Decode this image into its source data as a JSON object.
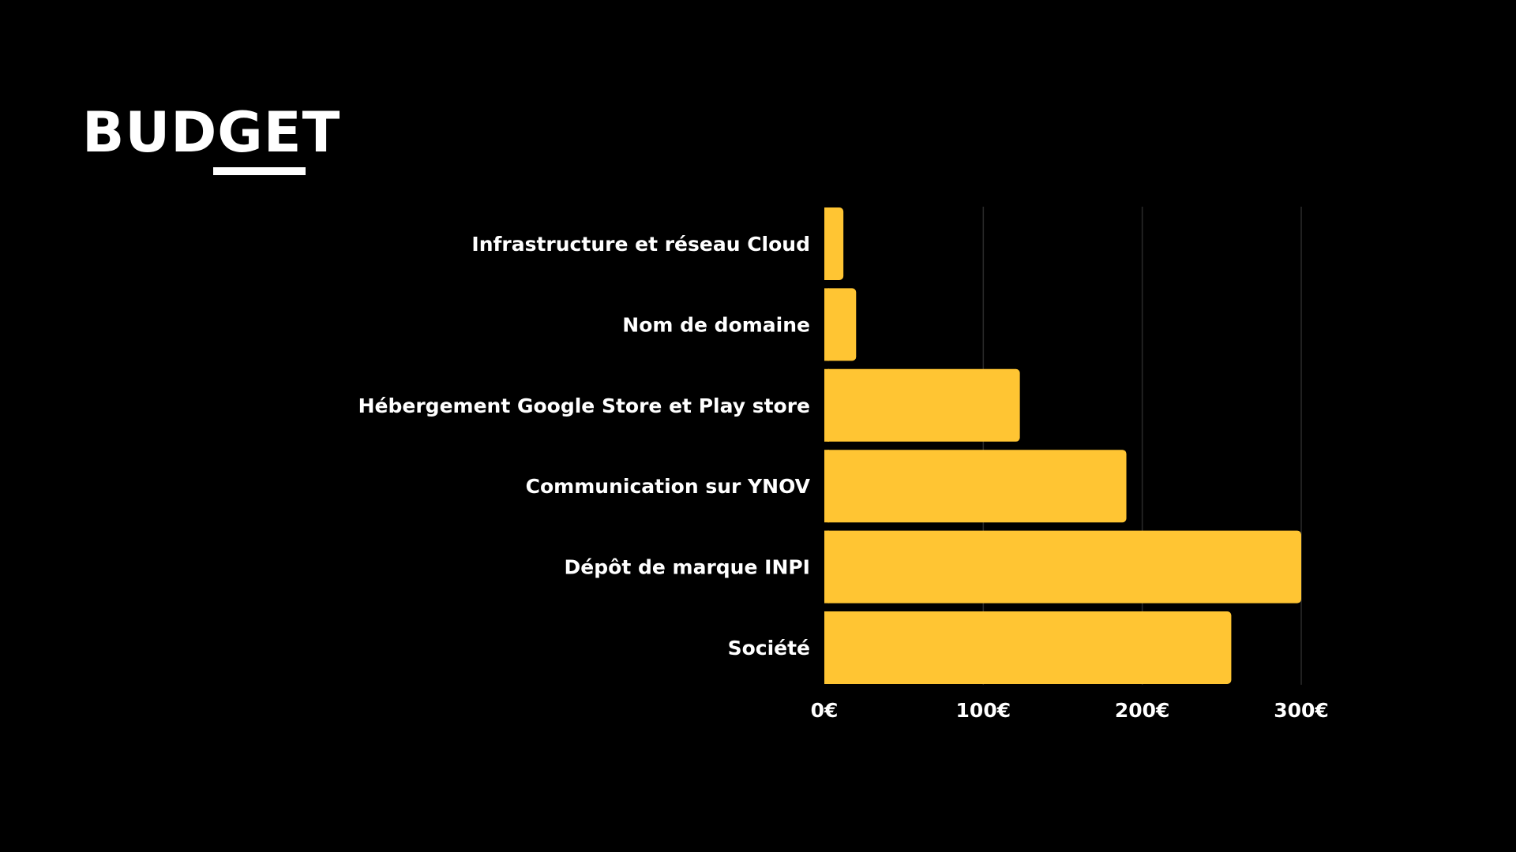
{
  "slide": {
    "title": "BUDGET"
  },
  "colors": {
    "background": "#000000",
    "bar": "#FFC533",
    "text": "#FFFFFF",
    "grid": "#2A2A2A"
  },
  "chart_data": {
    "type": "bar",
    "orientation": "horizontal",
    "categories": [
      "Infrastructure et réseau Cloud",
      "Nom de domaine",
      "Hébergement Google Store et Play store",
      "Communication sur YNOV",
      "Dépôt de marque INPI",
      "Société"
    ],
    "values": [
      12,
      20,
      123,
      190,
      300,
      256
    ],
    "unit": "€",
    "xlim": [
      0,
      300
    ],
    "xticks": [
      0,
      100,
      200,
      300
    ],
    "xtick_labels": [
      "0€",
      "100€",
      "200€",
      "300€"
    ],
    "grid": "vertical",
    "legend": "none"
  }
}
